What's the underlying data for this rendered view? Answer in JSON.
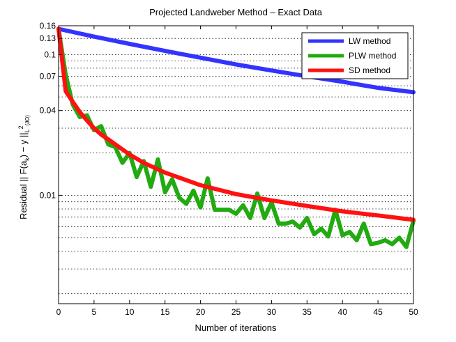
{
  "chart_data": {
    "type": "line",
    "title": "Projected Landweber Method – Exact Data",
    "xlabel": "Number of iterations",
    "ylabel_main": "Residual   || F(a",
    "ylabel_sub_k": "k",
    "ylabel_mid": ") − y ||",
    "ylabel_sub_L": "L",
    "ylabel_sup2": "2",
    "ylabel_sub_domain": "(∂Ω)",
    "xlim": [
      0,
      50
    ],
    "ylim": [
      0.0017,
      0.16
    ],
    "yscale": "log",
    "grid": true,
    "legend_position": "top-right",
    "xticks": [
      0,
      5,
      10,
      15,
      20,
      25,
      30,
      35,
      40,
      45,
      50
    ],
    "xtick_labels": [
      "0",
      "5",
      "10",
      "15",
      "20",
      "25",
      "30",
      "35",
      "40",
      "45",
      "50"
    ],
    "yticks": [
      0.01,
      0.04,
      0.07,
      0.1,
      0.13,
      0.16
    ],
    "ytick_labels": [
      "0.01",
      "0.04",
      "0.07",
      "0.1",
      "0.13",
      "0.16"
    ],
    "series": [
      {
        "name": "LW method",
        "color": "#3333ff",
        "x": [
          0,
          5,
          10,
          15,
          20,
          25,
          30,
          35,
          40,
          45,
          50
        ],
        "y": [
          0.152,
          0.134,
          0.119,
          0.106,
          0.095,
          0.085,
          0.077,
          0.07,
          0.064,
          0.058,
          0.054
        ]
      },
      {
        "name": "PLW method",
        "color": "#22aa11",
        "x": [
          0,
          1,
          2,
          3,
          4,
          5,
          6,
          7,
          8,
          9,
          10,
          11,
          12,
          13,
          14,
          15,
          16,
          17,
          18,
          19,
          20,
          21,
          22,
          23,
          24,
          25,
          26,
          27,
          28,
          29,
          30,
          31,
          32,
          33,
          34,
          35,
          36,
          37,
          38,
          39,
          40,
          41,
          42,
          43,
          44,
          45,
          46,
          47,
          48,
          49,
          50
        ],
        "y": [
          0.152,
          0.072,
          0.044,
          0.036,
          0.037,
          0.029,
          0.031,
          0.023,
          0.022,
          0.017,
          0.02,
          0.0135,
          0.0175,
          0.0115,
          0.018,
          0.0105,
          0.013,
          0.0096,
          0.0087,
          0.0108,
          0.0082,
          0.0132,
          0.0079,
          0.0079,
          0.0079,
          0.0074,
          0.0085,
          0.0069,
          0.0103,
          0.0069,
          0.0089,
          0.0063,
          0.0063,
          0.0065,
          0.0059,
          0.0069,
          0.0053,
          0.0058,
          0.0051,
          0.0079,
          0.0052,
          0.0055,
          0.0048,
          0.0063,
          0.0045,
          0.0046,
          0.0048,
          0.0045,
          0.005,
          0.0043,
          0.0066
        ]
      },
      {
        "name": "SD method",
        "color": "#ff1111",
        "x": [
          0,
          1,
          2,
          3,
          4,
          5,
          6,
          7,
          8,
          10,
          12,
          15,
          20,
          25,
          30,
          35,
          40,
          45,
          50
        ],
        "y": [
          0.152,
          0.055,
          0.046,
          0.039,
          0.034,
          0.03,
          0.027,
          0.025,
          0.023,
          0.0195,
          0.017,
          0.0145,
          0.0118,
          0.0102,
          0.0092,
          0.0084,
          0.0077,
          0.0072,
          0.0067
        ]
      }
    ]
  }
}
